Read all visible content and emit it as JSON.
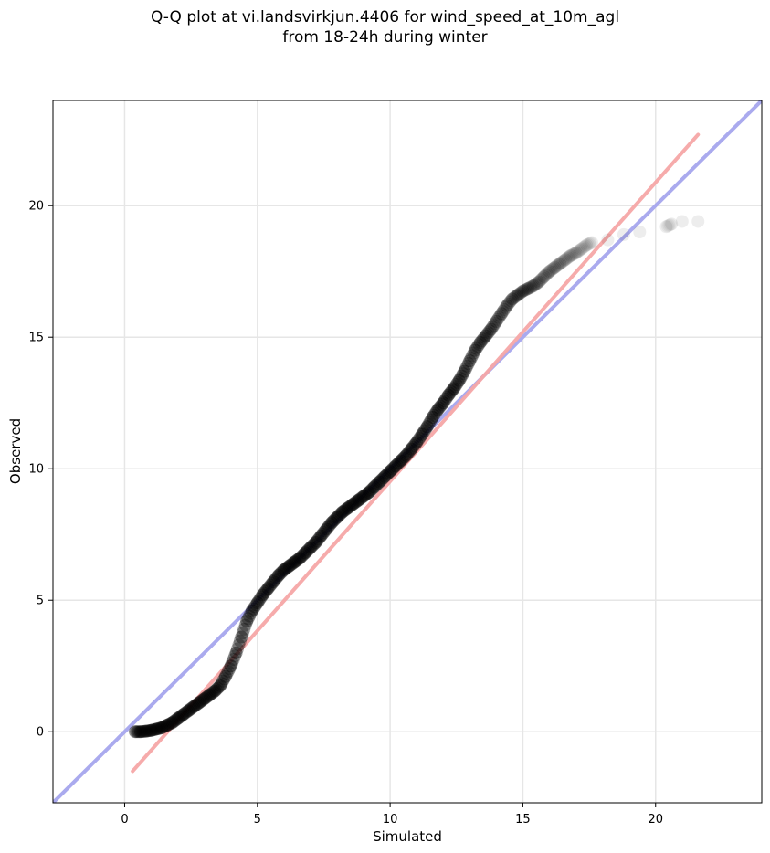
{
  "chart_data": {
    "type": "scatter",
    "title_line1": "Q-Q plot at vi.landsvirkjun.4406 for wind_speed_at_10m_agl",
    "title_line2": "from 18-24h during winter",
    "xlabel": "Simulated",
    "ylabel": "Observed",
    "xlim": [
      -2.7,
      24
    ],
    "ylim": [
      -2.7,
      24
    ],
    "xticks": [
      0,
      5,
      10,
      15,
      20
    ],
    "yticks": [
      0,
      5,
      10,
      15,
      20
    ],
    "grid": true,
    "colors": {
      "points": "#000000",
      "identity_line": "#aaaaee",
      "fit_line": "#f5a6a6"
    },
    "identity_line": {
      "x": [
        -2.7,
        24
      ],
      "y": [
        -2.7,
        24
      ]
    },
    "fit_line": {
      "x": [
        0.3,
        21.6
      ],
      "y": [
        -1.5,
        22.7
      ]
    },
    "series": [
      {
        "x": [
          0.4,
          0.6,
          0.8,
          1.0,
          1.2,
          1.4,
          1.6,
          1.8,
          2.0,
          2.2,
          2.4,
          2.6,
          2.8,
          3.0,
          3.2,
          3.4,
          3.6,
          3.8,
          4.0,
          4.2,
          4.4,
          4.6,
          4.8,
          5.0,
          5.2,
          5.4,
          5.6,
          5.8,
          6.0,
          6.2,
          6.4,
          6.6,
          6.8,
          7.0,
          7.2,
          7.4,
          7.6,
          7.8,
          8.0,
          8.2,
          8.4,
          8.6,
          8.8,
          9.0,
          9.2,
          9.4,
          9.6,
          9.8,
          10.0,
          10.2,
          10.4,
          10.6,
          10.8,
          11.0,
          11.2,
          11.4,
          11.6,
          11.8,
          12.0,
          12.2,
          12.4,
          12.6,
          12.8,
          13.0,
          13.2,
          13.4,
          13.6,
          13.8,
          14.0,
          14.2,
          14.4,
          14.6,
          14.8,
          15.0,
          15.2,
          15.4,
          15.6,
          15.8,
          16.0,
          16.2,
          16.4,
          16.6,
          16.8,
          17.0,
          17.2,
          17.4,
          17.6,
          18.2,
          18.8,
          19.4,
          20.4,
          20.6,
          21.0,
          21.6
        ],
        "y": [
          0.0,
          0.0,
          0.02,
          0.05,
          0.1,
          0.15,
          0.25,
          0.35,
          0.5,
          0.65,
          0.8,
          0.95,
          1.1,
          1.25,
          1.4,
          1.55,
          1.75,
          2.1,
          2.5,
          3.0,
          3.6,
          4.2,
          4.6,
          4.9,
          5.2,
          5.45,
          5.7,
          5.95,
          6.15,
          6.3,
          6.45,
          6.6,
          6.8,
          7.0,
          7.2,
          7.45,
          7.7,
          7.95,
          8.15,
          8.35,
          8.5,
          8.65,
          8.8,
          8.95,
          9.1,
          9.3,
          9.5,
          9.7,
          9.9,
          10.1,
          10.3,
          10.5,
          10.75,
          11.0,
          11.3,
          11.6,
          11.95,
          12.25,
          12.5,
          12.8,
          13.05,
          13.35,
          13.7,
          14.1,
          14.5,
          14.8,
          15.05,
          15.3,
          15.6,
          15.9,
          16.2,
          16.45,
          16.6,
          16.75,
          16.85,
          16.95,
          17.1,
          17.3,
          17.5,
          17.65,
          17.8,
          17.95,
          18.1,
          18.2,
          18.35,
          18.5,
          18.6,
          18.7,
          18.9,
          19.0,
          19.2,
          19.3,
          19.4,
          19.4
        ]
      }
    ]
  }
}
